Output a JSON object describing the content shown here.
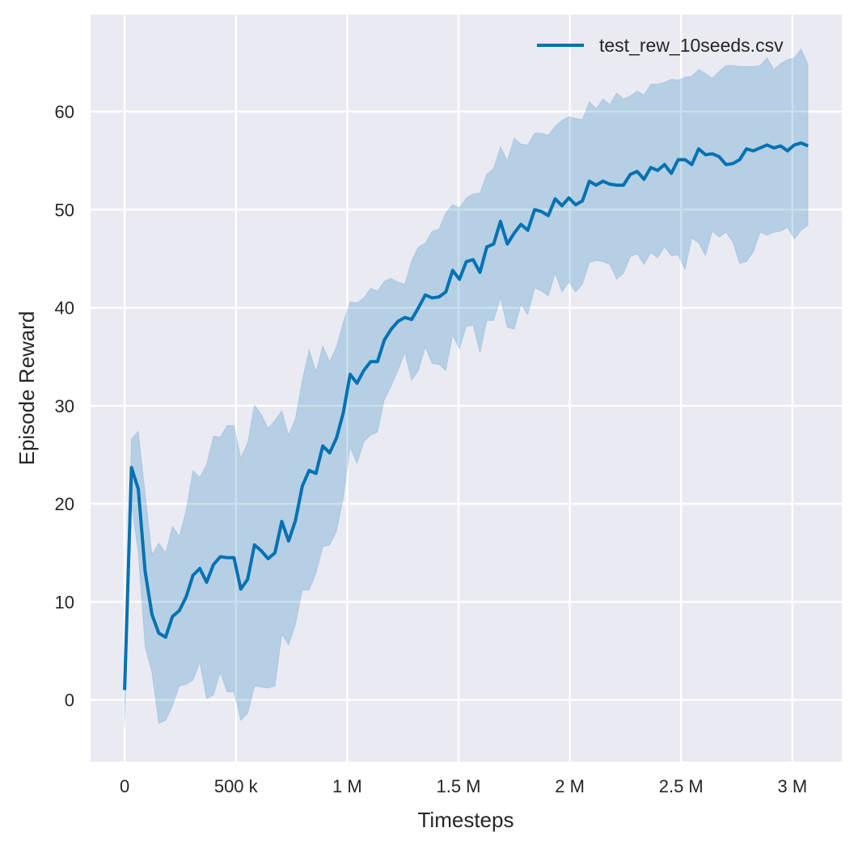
{
  "chart_data": {
    "type": "line",
    "title": "",
    "xlabel": "Timesteps",
    "ylabel": "Episode Reward",
    "xlim": [
      -153000,
      3222000
    ],
    "ylim": [
      -6.3,
      69.9
    ],
    "grid": true,
    "legend_placement": "top-right",
    "x_ticks": [
      0,
      500000,
      1000000,
      1500000,
      2000000,
      2500000,
      3000000
    ],
    "x_tick_labels": [
      "0",
      "500 k",
      "1 M",
      "1.5 M",
      "2 M",
      "2.5 M",
      "3 M"
    ],
    "y_ticks": [
      0,
      10,
      20,
      30,
      40,
      50,
      60
    ],
    "y_tick_labels": [
      "0",
      "10",
      "20",
      "30",
      "40",
      "50",
      "60"
    ],
    "colors": {
      "background": "#EAEAF2",
      "grid": "#FFFFFF",
      "line": "#0072B2",
      "band": "#0072B2"
    },
    "series": [
      {
        "name": "test_rew_10seeds.csv",
        "mean": [
          1.0,
          23.7,
          21.5,
          13.1,
          8.7,
          6.8,
          6.4,
          8.5,
          9.1,
          10.5,
          12.7,
          13.4,
          12.0,
          13.8,
          14.6,
          14.5,
          14.5,
          11.3,
          12.3,
          15.8,
          15.2,
          14.4,
          15.0,
          18.2,
          16.2,
          18.3,
          21.8,
          23.4,
          23.1,
          25.9,
          25.2,
          26.7,
          29.3,
          33.2,
          32.3,
          33.6,
          34.5,
          34.5,
          36.7,
          37.8,
          38.6,
          39.0,
          38.8,
          40.0,
          41.3,
          41.0,
          41.1,
          41.6,
          43.8,
          42.9,
          44.7,
          44.9,
          43.6,
          46.2,
          46.5,
          48.8,
          46.5,
          47.6,
          48.5,
          47.9,
          50.0,
          49.8,
          49.4,
          51.1,
          50.4,
          51.2,
          50.5,
          50.9,
          52.9,
          52.5,
          52.9,
          52.6,
          52.5,
          52.5,
          53.6,
          53.9,
          53.1,
          54.3,
          54.0,
          54.6,
          53.7,
          55.1,
          55.1,
          54.6,
          56.2,
          55.6,
          55.7,
          55.4,
          54.6,
          54.7,
          55.1,
          56.2,
          56.0,
          56.3,
          56.6,
          56.3,
          56.5,
          56.0,
          56.6,
          56.8,
          56.5
        ],
        "upper": [
          1.2,
          26.6,
          27.4,
          21.0,
          14.8,
          16.0,
          15.0,
          17.7,
          16.7,
          19.3,
          23.4,
          22.7,
          24.0,
          26.9,
          26.8,
          28.0,
          28.0,
          24.7,
          26.2,
          30.1,
          29.1,
          27.7,
          28.5,
          29.5,
          27.0,
          28.7,
          32.6,
          35.7,
          33.5,
          36.1,
          34.5,
          36.0,
          38.5,
          40.6,
          40.5,
          41.0,
          42.0,
          41.7,
          42.7,
          43.0,
          42.6,
          42.4,
          44.8,
          46.2,
          46.6,
          47.8,
          48.0,
          49.7,
          50.5,
          50.2,
          51.2,
          51.6,
          51.7,
          53.6,
          54.2,
          56.4,
          55.0,
          57.3,
          56.7,
          56.6,
          57.8,
          57.8,
          57.6,
          58.5,
          59.1,
          59.5,
          59.3,
          59.2,
          61.0,
          60.3,
          61.3,
          60.7,
          61.9,
          61.3,
          61.6,
          62.1,
          61.7,
          62.8,
          62.8,
          63.0,
          63.3,
          63.2,
          63.5,
          63.6,
          64.3,
          63.9,
          63.4,
          64.1,
          64.7,
          64.7,
          64.6,
          64.6,
          64.6,
          64.7,
          65.5,
          64.3,
          64.9,
          65.3,
          65.5,
          66.4,
          64.8
        ],
        "lower": [
          -2.8,
          20.0,
          15.0,
          5.4,
          2.8,
          -2.4,
          -2.1,
          -0.6,
          1.4,
          1.6,
          2.0,
          3.8,
          0.1,
          0.5,
          2.8,
          0.8,
          0.8,
          -2.1,
          -1.4,
          1.4,
          1.3,
          1.2,
          1.4,
          6.7,
          5.6,
          7.7,
          11.2,
          11.2,
          12.9,
          15.6,
          15.8,
          17.2,
          20.6,
          25.8,
          24.1,
          26.3,
          27.0,
          27.3,
          30.6,
          32.0,
          33.6,
          35.4,
          32.6,
          33.6,
          36.0,
          34.3,
          34.2,
          33.6,
          37.2,
          35.8,
          38.1,
          38.2,
          35.4,
          38.7,
          38.7,
          41.0,
          38.0,
          37.8,
          40.3,
          39.3,
          42.0,
          41.7,
          41.2,
          43.5,
          41.6,
          42.6,
          41.6,
          42.4,
          44.6,
          44.8,
          44.7,
          44.4,
          42.9,
          43.5,
          45.2,
          45.5,
          44.4,
          45.6,
          45.1,
          46.2,
          45.3,
          45.4,
          43.9,
          47.1,
          46.6,
          45.3,
          47.8,
          47.2,
          47.7,
          46.7,
          44.5,
          44.7,
          45.7,
          47.7,
          47.4,
          47.7,
          47.8,
          48.2,
          47.0,
          47.9,
          48.4
        ]
      }
    ]
  }
}
